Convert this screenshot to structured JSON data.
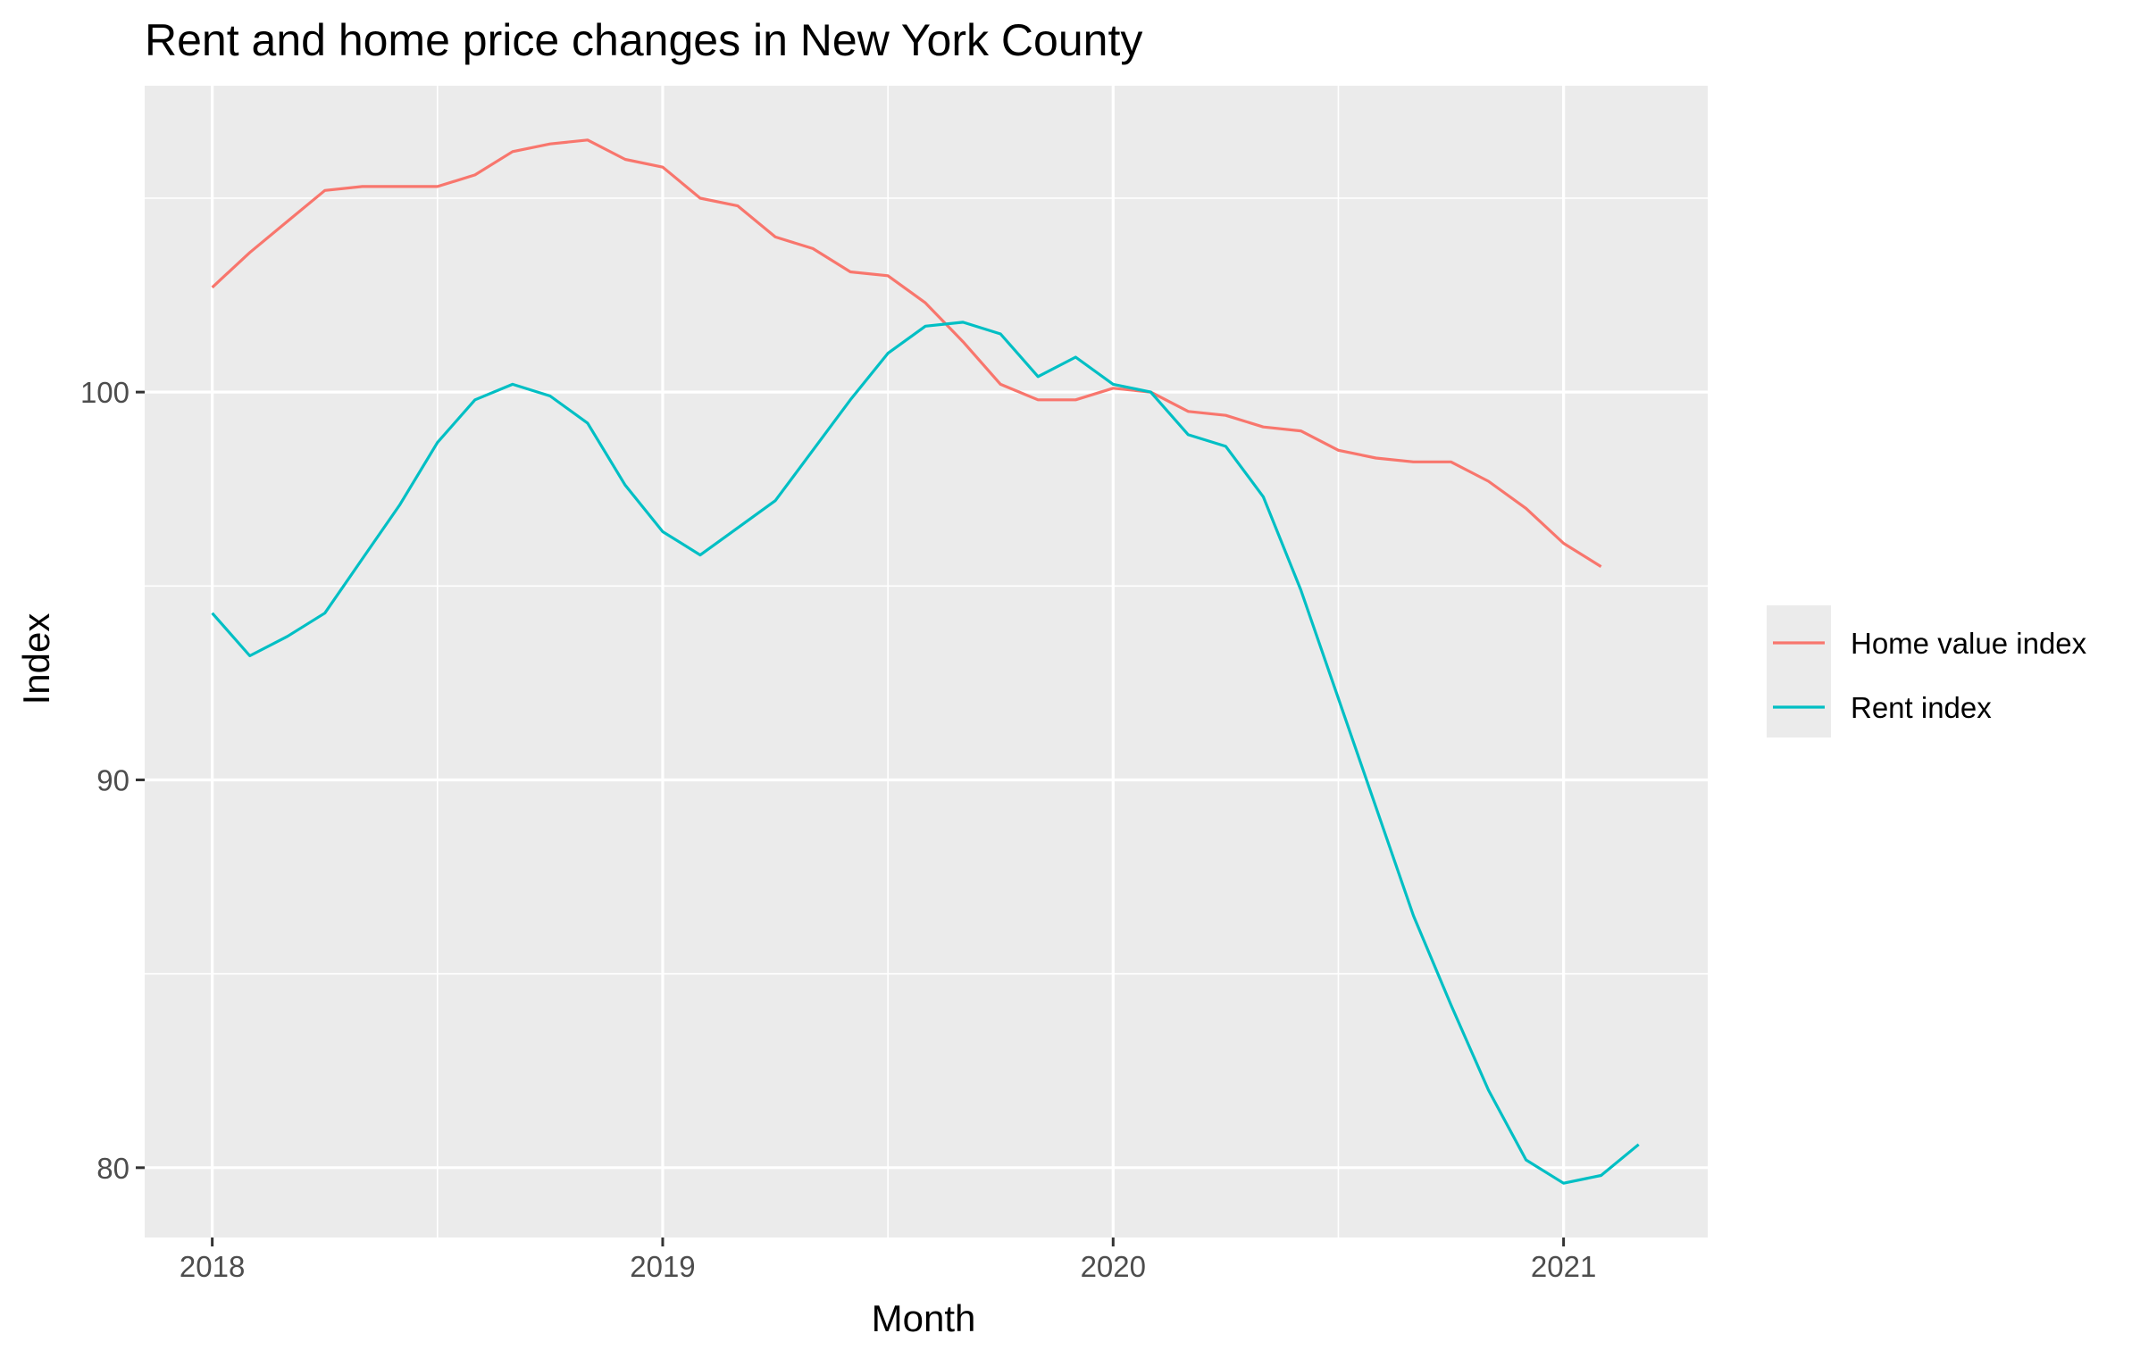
{
  "chart_data": {
    "type": "line",
    "title": "Rent and home price changes in New York County",
    "xlabel": "Month",
    "ylabel": "Index",
    "x_tick_labels": [
      "2018",
      "2019",
      "2020",
      "2021"
    ],
    "x_ticks": [
      2018,
      2019,
      2020,
      2021
    ],
    "y_tick_labels": [
      "80",
      "90",
      "100"
    ],
    "y_ticks": [
      80,
      90,
      100
    ],
    "xlim": [
      2017.85,
      2021.32
    ],
    "ylim": [
      78.2,
      107.9
    ],
    "grid": true,
    "legend_position": "right",
    "series": [
      {
        "name": "Home value index",
        "color": "#F8766D",
        "x": [
          2018.0,
          2018.0833,
          2018.1667,
          2018.25,
          2018.3333,
          2018.4167,
          2018.5,
          2018.5833,
          2018.6667,
          2018.75,
          2018.8333,
          2018.9167,
          2019.0,
          2019.0833,
          2019.1667,
          2019.25,
          2019.3333,
          2019.4167,
          2019.5,
          2019.5833,
          2019.6667,
          2019.75,
          2019.8333,
          2019.9167,
          2020.0,
          2020.0833,
          2020.1667,
          2020.25,
          2020.3333,
          2020.4167,
          2020.5,
          2020.5833,
          2020.6667,
          2020.75,
          2020.8333,
          2020.9167,
          2021.0,
          2021.0833
        ],
        "values": [
          102.7,
          103.6,
          104.4,
          105.2,
          105.3,
          105.3,
          105.3,
          105.6,
          106.2,
          106.4,
          106.5,
          106.0,
          105.8,
          105.0,
          104.8,
          104.0,
          103.7,
          103.1,
          103.0,
          102.3,
          101.3,
          100.2,
          99.8,
          99.8,
          100.1,
          100.0,
          99.5,
          99.4,
          99.1,
          99.0,
          98.5,
          98.3,
          98.2,
          98.2,
          97.7,
          97.0,
          96.1,
          95.5
        ]
      },
      {
        "name": "Rent index",
        "color": "#00BFC4",
        "x": [
          2018.0,
          2018.0833,
          2018.1667,
          2018.25,
          2018.3333,
          2018.4167,
          2018.5,
          2018.5833,
          2018.6667,
          2018.75,
          2018.8333,
          2018.9167,
          2019.0,
          2019.0833,
          2019.1667,
          2019.25,
          2019.3333,
          2019.4167,
          2019.5,
          2019.5833,
          2019.6667,
          2019.75,
          2019.8333,
          2019.9167,
          2020.0,
          2020.0833,
          2020.1667,
          2020.25,
          2020.3333,
          2020.4167,
          2020.5,
          2020.5833,
          2020.6667,
          2020.75,
          2020.8333,
          2020.9167,
          2021.0,
          2021.0833,
          2021.1667
        ],
        "values": [
          94.3,
          93.2,
          93.7,
          94.3,
          95.7,
          97.1,
          98.7,
          99.8,
          100.2,
          99.9,
          99.2,
          97.6,
          96.4,
          95.8,
          96.5,
          97.2,
          98.5,
          99.8,
          101.0,
          101.7,
          101.8,
          101.5,
          100.4,
          100.9,
          100.2,
          100.0,
          98.9,
          98.6,
          97.3,
          94.9,
          92.1,
          89.3,
          86.5,
          84.2,
          82.0,
          80.2,
          79.6,
          79.8,
          80.6
        ]
      }
    ]
  }
}
